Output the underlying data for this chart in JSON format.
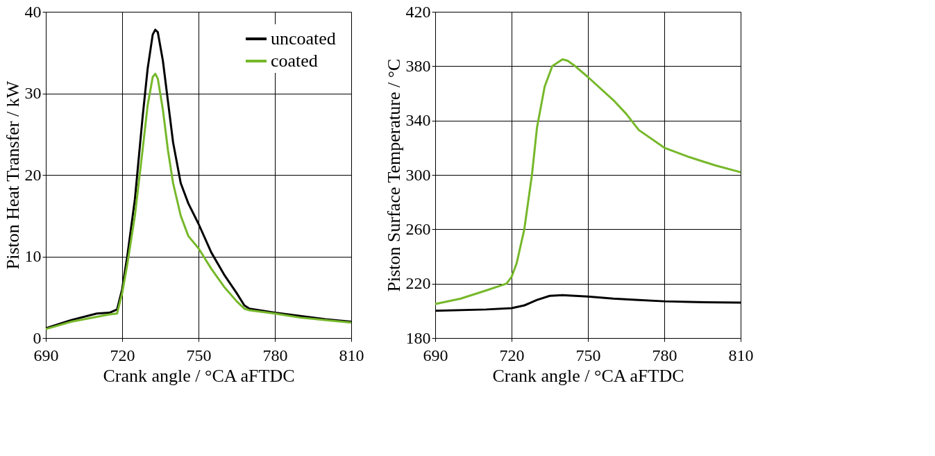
{
  "chart_data": [
    {
      "type": "line",
      "xlabel": "Crank angle / °CA aFTDC",
      "ylabel": "Piston Heat Transfer / kW",
      "xlim": [
        690,
        810
      ],
      "xticks": [
        690,
        720,
        750,
        780,
        810
      ],
      "ylim": [
        0,
        40
      ],
      "yticks": [
        0,
        10,
        20,
        30,
        40
      ],
      "grid": true,
      "legend": "top right",
      "line_style": "solid",
      "series": [
        {
          "name": "uncoated",
          "color": "#000000",
          "x": [
            690,
            700,
            710,
            715,
            718,
            720,
            722,
            725,
            728,
            730,
            732,
            733,
            734,
            736,
            738,
            740,
            743,
            746,
            750,
            755,
            760,
            765,
            768,
            770,
            780,
            790,
            800,
            810
          ],
          "values": [
            1.2,
            2.2,
            3.0,
            3.1,
            3.5,
            6,
            10,
            17,
            27,
            33,
            37.2,
            37.8,
            37.5,
            34,
            29,
            24,
            19,
            16.5,
            14,
            10.5,
            7.8,
            5.5,
            4,
            3.6,
            3.1,
            2.7,
            2.3,
            2.0
          ]
        },
        {
          "name": "coated",
          "color": "#76b82a",
          "x": [
            690,
            700,
            710,
            715,
            718,
            720,
            722,
            725,
            728,
            730,
            732,
            733,
            734,
            736,
            738,
            740,
            743,
            746,
            750,
            755,
            760,
            765,
            768,
            770,
            780,
            790,
            800,
            810
          ],
          "values": [
            1.1,
            2.0,
            2.6,
            2.9,
            3.0,
            5.5,
            9,
            15,
            23,
            28.5,
            32.0,
            32.4,
            31.8,
            28,
            23,
            19,
            15,
            12.5,
            11,
            8.5,
            6.3,
            4.5,
            3.6,
            3.4,
            3.0,
            2.5,
            2.2,
            1.9
          ]
        }
      ]
    },
    {
      "type": "line",
      "xlabel": "Crank angle / °CA aFTDC",
      "ylabel": "Piston Surface Temperature / °C",
      "xlim": [
        690,
        810
      ],
      "xticks": [
        690,
        720,
        750,
        780,
        810
      ],
      "ylim": [
        180,
        420
      ],
      "yticks": [
        180,
        220,
        260,
        300,
        340,
        380,
        420
      ],
      "grid": true,
      "line_style": "solid",
      "series": [
        {
          "color": "#000000",
          "x": [
            690,
            710,
            720,
            725,
            730,
            735,
            740,
            750,
            760,
            770,
            780,
            790,
            810
          ],
          "values": [
            200,
            201,
            202,
            204,
            208,
            211,
            211.5,
            210.5,
            209,
            208,
            207,
            206.5,
            206
          ]
        },
        {
          "color": "#76b82a",
          "x": [
            690,
            700,
            710,
            718,
            720,
            722,
            725,
            728,
            730,
            733,
            736,
            740,
            742,
            745,
            750,
            760,
            765,
            770,
            780,
            790,
            800,
            810
          ],
          "values": [
            205,
            209,
            215,
            220,
            225,
            235,
            260,
            300,
            335,
            365,
            380,
            385,
            384,
            380,
            372,
            355,
            345,
            333,
            320,
            313,
            307,
            302
          ]
        }
      ]
    }
  ]
}
